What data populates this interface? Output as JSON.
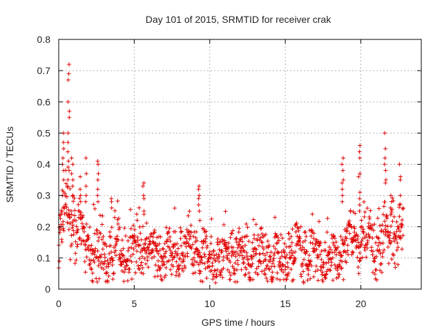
{
  "chart_data": {
    "type": "scatter",
    "title": "Day 101 of 2015, SRMTID for receiver crak",
    "xlabel": "GPS time / hours",
    "ylabel": "SRMTID / TECUs",
    "xlim": [
      0,
      24
    ],
    "ylim": [
      0,
      0.8
    ],
    "xticks": [
      0,
      5,
      10,
      15,
      20
    ],
    "xtick_labels": [
      "0",
      "5",
      "10",
      "15",
      "20"
    ],
    "yticks": [
      0,
      0.1,
      0.2,
      0.3,
      0.4,
      0.5,
      0.6,
      0.7,
      0.8
    ],
    "ytick_labels": [
      "0",
      "0.1",
      "0.2",
      "0.3",
      "0.4",
      "0.5",
      "0.6",
      "0.7",
      "0.8"
    ],
    "grid": true,
    "marker": "+",
    "color": "#e00000",
    "series": [
      {
        "name": "SRMTID",
        "baseline_profile": {
          "x": [
            0.0,
            0.3,
            0.6,
            1.0,
            1.5,
            2.0,
            2.5,
            3.0,
            4.0,
            5.0,
            6.0,
            7.0,
            8.0,
            9.0,
            10.0,
            11.0,
            12.0,
            13.0,
            14.0,
            15.0,
            16.0,
            17.0,
            18.0,
            18.5,
            19.0,
            19.5,
            20.0,
            20.5,
            21.0,
            21.5,
            22.0,
            22.5,
            22.8
          ],
          "y": [
            0.12,
            0.25,
            0.27,
            0.2,
            0.17,
            0.14,
            0.12,
            0.1,
            0.13,
            0.12,
            0.14,
            0.11,
            0.12,
            0.14,
            0.09,
            0.11,
            0.1,
            0.11,
            0.1,
            0.1,
            0.12,
            0.11,
            0.09,
            0.1,
            0.15,
            0.16,
            0.17,
            0.14,
            0.13,
            0.15,
            0.2,
            0.2,
            0.17
          ]
        },
        "spread": 0.045,
        "x_start": 0.0,
        "x_end": 22.8,
        "n_points": 1300,
        "outlier_clusters": [
          {
            "x": 0.3,
            "y": [
              0.3,
              0.35,
              0.4,
              0.45,
              0.38,
              0.42,
              0.5,
              0.47
            ]
          },
          {
            "x": 0.65,
            "y": [
              0.72,
              0.69,
              0.67,
              0.6,
              0.57,
              0.55,
              0.5,
              0.47,
              0.44,
              0.41,
              0.38,
              0.35,
              0.33
            ]
          },
          {
            "x": 0.9,
            "y": [
              0.42,
              0.4,
              0.37,
              0.35,
              0.33,
              0.3
            ]
          },
          {
            "x": 1.4,
            "y": [
              0.36,
              0.32,
              0.3,
              0.28
            ]
          },
          {
            "x": 1.8,
            "y": [
              0.42,
              0.37,
              0.33,
              0.3,
              0.28
            ]
          },
          {
            "x": 2.6,
            "y": [
              0.41,
              0.4,
              0.37,
              0.35,
              0.32,
              0.3,
              0.28
            ]
          },
          {
            "x": 3.5,
            "y": [
              0.29,
              0.28,
              0.26
            ]
          },
          {
            "x": 5.6,
            "y": [
              0.34,
              0.33,
              0.3,
              0.29,
              0.25,
              0.24
            ]
          },
          {
            "x": 9.3,
            "y": [
              0.33,
              0.32,
              0.3,
              0.29,
              0.27,
              0.25,
              0.22
            ]
          },
          {
            "x": 18.8,
            "y": [
              0.42,
              0.4,
              0.38,
              0.35,
              0.34,
              0.32,
              0.3,
              0.28
            ]
          },
          {
            "x": 19.9,
            "y": [
              0.46,
              0.44,
              0.42,
              0.37,
              0.36,
              0.31,
              0.29,
              0.27,
              0.25
            ]
          },
          {
            "x": 21.6,
            "y": [
              0.5,
              0.45,
              0.42,
              0.4,
              0.38,
              0.35,
              0.34
            ]
          },
          {
            "x": 22.0,
            "y": [
              0.3,
              0.28,
              0.26,
              0.25
            ]
          },
          {
            "x": 22.6,
            "y": [
              0.4,
              0.36,
              0.35,
              0.3,
              0.27
            ]
          }
        ]
      }
    ]
  }
}
